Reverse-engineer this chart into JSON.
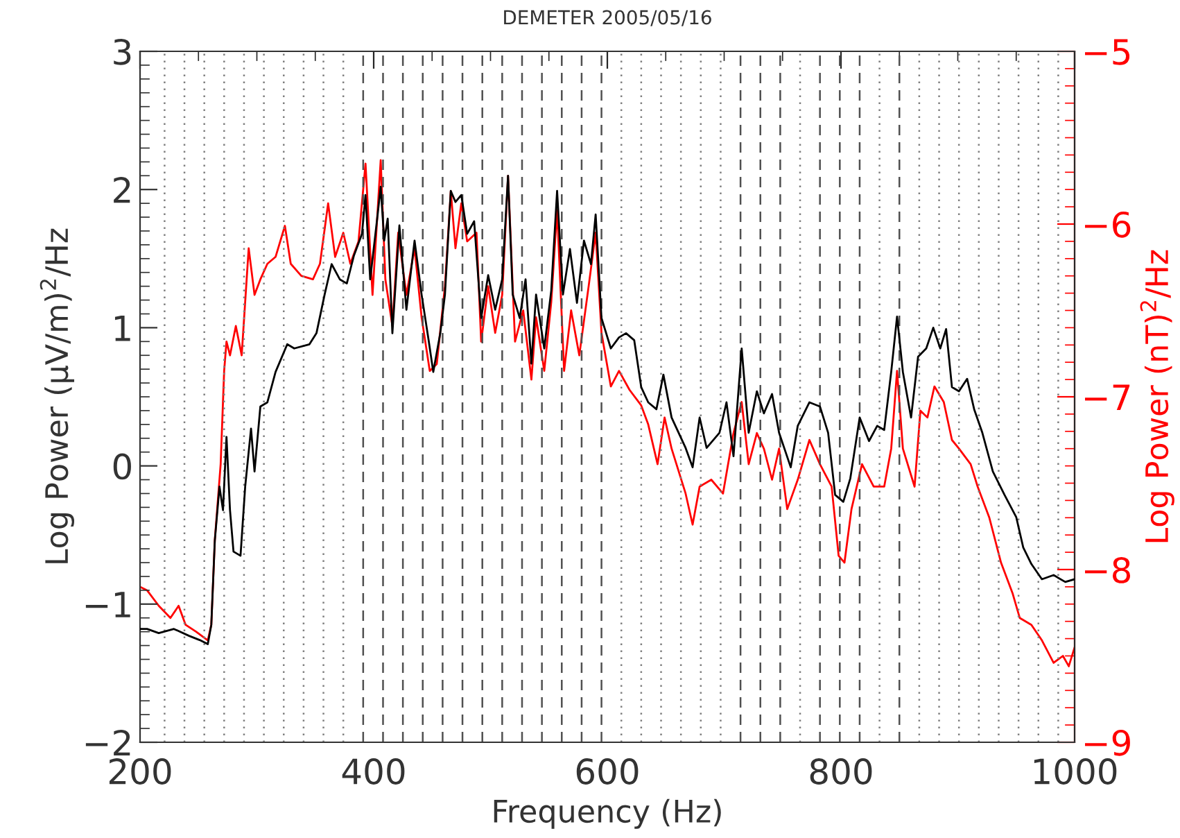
{
  "chart_data": {
    "type": "line",
    "title": "DEMETER 2005/05/16",
    "xlabel": "Frequency (Hz)",
    "ylabel": "Log Power (μV/m)$^{2}$/Hz",
    "y2label": "Log Power (nT)$^{2}$/Hz",
    "xlim": [
      200,
      1000
    ],
    "xticks": [
      200,
      400,
      600,
      800,
      1000
    ],
    "ylim": [
      -2,
      3
    ],
    "yticks": [
      -2,
      -1,
      0,
      1,
      2,
      3
    ],
    "y2lim": [
      -9,
      -5
    ],
    "y2ticks": [
      -9,
      -8,
      -7,
      -6,
      -5
    ],
    "grid": false,
    "legend": false,
    "marker": "none",
    "line_style": "solid",
    "series": [
      {
        "color": "#000000",
        "x": [
          200,
          206,
          216,
          229,
          242,
          251,
          258,
          261,
          264,
          268,
          271,
          274,
          277,
          280,
          286,
          290,
          295,
          298,
          303,
          309,
          316,
          326,
          332,
          345,
          351,
          358,
          364,
          371,
          377,
          383,
          390,
          393,
          397,
          403,
          406,
          409,
          412,
          416,
          422,
          428,
          435,
          441,
          447,
          451,
          457,
          461,
          466,
          470,
          475,
          480,
          486,
          492,
          498,
          504,
          510,
          515,
          519,
          525,
          530,
          535,
          539,
          546,
          552,
          557,
          562,
          568,
          574,
          580,
          586,
          590,
          595,
          603,
          610,
          616,
          623,
          629,
          635,
          642,
          648,
          655,
          667,
          673,
          679,
          685,
          696,
          702,
          708,
          715,
          721,
          728,
          734,
          741,
          747,
          757,
          763,
          773,
          782,
          789,
          795,
          802,
          808,
          816,
          824,
          831,
          837,
          843,
          848,
          853,
          860,
          866,
          873,
          879,
          885,
          890,
          895,
          901,
          908,
          914,
          921,
          930,
          940,
          950,
          956,
          963,
          972,
          982,
          992,
          1000
        ],
        "values": [
          -1.18,
          -1.18,
          -1.21,
          -1.18,
          -1.23,
          -1.26,
          -1.29,
          -1.15,
          -0.54,
          -0.15,
          -0.32,
          0.21,
          -0.32,
          -0.62,
          -0.65,
          -0.15,
          0.27,
          -0.04,
          0.43,
          0.46,
          0.68,
          0.88,
          0.85,
          0.88,
          0.96,
          1.24,
          1.46,
          1.35,
          1.32,
          1.52,
          1.68,
          1.96,
          1.35,
          1.79,
          2.02,
          1.63,
          1.79,
          0.96,
          1.74,
          1.13,
          1.63,
          1.24,
          0.91,
          0.68,
          0.96,
          1.24,
          1.99,
          1.91,
          1.96,
          1.68,
          1.77,
          1.07,
          1.38,
          1.13,
          1.35,
          2.1,
          1.24,
          1.07,
          1.35,
          0.74,
          1.24,
          0.85,
          1.27,
          1.99,
          1.24,
          1.57,
          1.18,
          1.63,
          1.46,
          1.82,
          1.07,
          0.85,
          0.93,
          0.96,
          0.91,
          0.57,
          0.46,
          0.41,
          0.66,
          0.35,
          0.13,
          -0.01,
          0.35,
          0.13,
          0.24,
          0.46,
          0.07,
          0.85,
          0.24,
          0.54,
          0.38,
          0.52,
          0.24,
          -0.01,
          0.29,
          0.46,
          0.43,
          0.24,
          -0.21,
          -0.26,
          -0.09,
          0.35,
          0.18,
          0.29,
          0.26,
          0.68,
          1.08,
          0.68,
          0.35,
          0.79,
          0.85,
          1.0,
          0.85,
          0.99,
          0.57,
          0.54,
          0.63,
          0.41,
          0.24,
          -0.04,
          -0.21,
          -0.37,
          -0.59,
          -0.71,
          -0.82,
          -0.79,
          -0.84,
          -0.82
        ]
      },
      {
        "color": "#ff0000",
        "axis": "y2",
        "x": [
          200,
          206,
          216,
          226,
          233,
          239,
          248,
          258,
          261,
          264,
          269,
          272,
          274,
          277,
          282,
          287,
          293,
          298,
          303,
          309,
          316,
          324,
          329,
          338,
          348,
          354,
          361,
          367,
          374,
          380,
          387,
          393,
          399,
          406,
          410,
          416,
          421,
          428,
          435,
          441,
          448,
          454,
          461,
          466,
          470,
          475,
          480,
          488,
          492,
          498,
          504,
          510,
          515,
          521,
          528,
          535,
          539,
          546,
          552,
          557,
          563,
          569,
          576,
          584,
          590,
          595,
          603,
          610,
          619,
          629,
          635,
          643,
          649,
          655,
          667,
          673,
          679,
          689,
          699,
          708,
          715,
          721,
          728,
          734,
          741,
          747,
          754,
          763,
          773,
          782,
          792,
          798,
          803,
          809,
          818,
          828,
          837,
          843,
          848,
          853,
          863,
          868,
          874,
          880,
          888,
          895,
          901,
          911,
          917,
          927,
          937,
          947,
          953,
          963,
          972,
          982,
          990,
          995,
          1000
        ],
        "values": [
          -8.1,
          -8.12,
          -8.21,
          -8.28,
          -8.21,
          -8.32,
          -8.36,
          -8.41,
          -8.32,
          -7.83,
          -7.39,
          -6.85,
          -6.68,
          -6.76,
          -6.59,
          -6.76,
          -6.14,
          -6.41,
          -6.32,
          -6.23,
          -6.19,
          -6.01,
          -6.23,
          -6.3,
          -6.32,
          -6.23,
          -5.88,
          -6.19,
          -6.05,
          -6.23,
          -6.1,
          -5.65,
          -6.41,
          -5.63,
          -6.32,
          -6.59,
          -6.05,
          -6.41,
          -6.14,
          -6.54,
          -6.85,
          -6.81,
          -6.36,
          -5.81,
          -6.14,
          -5.88,
          -6.1,
          -6.05,
          -6.68,
          -6.36,
          -6.63,
          -6.41,
          -5.72,
          -6.68,
          -6.5,
          -6.9,
          -6.54,
          -6.85,
          -6.45,
          -5.92,
          -6.85,
          -6.5,
          -6.76,
          -6.36,
          -6.05,
          -6.63,
          -6.94,
          -6.85,
          -6.96,
          -7.05,
          -7.16,
          -7.39,
          -7.12,
          -7.3,
          -7.56,
          -7.74,
          -7.52,
          -7.48,
          -7.56,
          -7.21,
          -7.03,
          -7.39,
          -7.21,
          -7.3,
          -7.48,
          -7.3,
          -7.65,
          -7.48,
          -7.25,
          -7.39,
          -7.52,
          -7.92,
          -7.96,
          -7.65,
          -7.39,
          -7.52,
          -7.52,
          -7.3,
          -6.85,
          -7.3,
          -7.52,
          -7.08,
          -7.12,
          -6.94,
          -7.03,
          -7.25,
          -7.3,
          -7.39,
          -7.52,
          -7.7,
          -7.96,
          -8.14,
          -8.28,
          -8.32,
          -8.41,
          -8.54,
          -8.5,
          -8.56,
          -8.45
        ]
      }
    ],
    "ref_lines": [
      {
        "axis": "x",
        "value": 221,
        "line_style": "dotted",
        "color": "#808080"
      },
      {
        "axis": "x",
        "value": 238,
        "line_style": "dotted",
        "color": "#808080"
      },
      {
        "axis": "x",
        "value": 255,
        "line_style": "dotted",
        "color": "#808080"
      },
      {
        "axis": "x",
        "value": 272,
        "line_style": "dotted",
        "color": "#808080"
      },
      {
        "axis": "x",
        "value": 289,
        "line_style": "dotted",
        "color": "#808080"
      },
      {
        "axis": "x",
        "value": 306,
        "line_style": "dotted",
        "color": "#808080"
      },
      {
        "axis": "x",
        "value": 323,
        "line_style": "dotted",
        "color": "#808080"
      },
      {
        "axis": "x",
        "value": 340,
        "line_style": "dotted",
        "color": "#808080"
      },
      {
        "axis": "x",
        "value": 357,
        "line_style": "dotted",
        "color": "#808080"
      },
      {
        "axis": "x",
        "value": 374,
        "line_style": "dotted",
        "color": "#808080"
      },
      {
        "axis": "x",
        "value": 391,
        "line_style": "dashed",
        "color": "#505050"
      },
      {
        "axis": "x",
        "value": 408,
        "line_style": "dashed",
        "color": "#505050"
      },
      {
        "axis": "x",
        "value": 425,
        "line_style": "dashed",
        "color": "#505050"
      },
      {
        "axis": "x",
        "value": 442,
        "line_style": "dashed",
        "color": "#505050"
      },
      {
        "axis": "x",
        "value": 459,
        "line_style": "dashed",
        "color": "#505050"
      },
      {
        "axis": "x",
        "value": 476,
        "line_style": "dashed",
        "color": "#505050"
      },
      {
        "axis": "x",
        "value": 493,
        "line_style": "dashed",
        "color": "#505050"
      },
      {
        "axis": "x",
        "value": 510,
        "line_style": "dashed",
        "color": "#505050"
      },
      {
        "axis": "x",
        "value": 527,
        "line_style": "dashed",
        "color": "#505050"
      },
      {
        "axis": "x",
        "value": 544,
        "line_style": "dashed",
        "color": "#505050"
      },
      {
        "axis": "x",
        "value": 561,
        "line_style": "dashed",
        "color": "#505050"
      },
      {
        "axis": "x",
        "value": 578,
        "line_style": "dashed",
        "color": "#505050"
      },
      {
        "axis": "x",
        "value": 595,
        "line_style": "dashed",
        "color": "#505050"
      },
      {
        "axis": "x",
        "value": 612,
        "line_style": "dotted",
        "color": "#808080"
      },
      {
        "axis": "x",
        "value": 629,
        "line_style": "dotted",
        "color": "#808080"
      },
      {
        "axis": "x",
        "value": 646,
        "line_style": "dotted",
        "color": "#808080"
      },
      {
        "axis": "x",
        "value": 663,
        "line_style": "dotted",
        "color": "#808080"
      },
      {
        "axis": "x",
        "value": 680,
        "line_style": "dotted",
        "color": "#808080"
      },
      {
        "axis": "x",
        "value": 697,
        "line_style": "dotted",
        "color": "#808080"
      },
      {
        "axis": "x",
        "value": 714,
        "line_style": "dashed",
        "color": "#505050"
      },
      {
        "axis": "x",
        "value": 731,
        "line_style": "dashed",
        "color": "#505050"
      },
      {
        "axis": "x",
        "value": 748,
        "line_style": "dashed",
        "color": "#505050"
      },
      {
        "axis": "x",
        "value": 765,
        "line_style": "dotted",
        "color": "#808080"
      },
      {
        "axis": "x",
        "value": 782,
        "line_style": "dashed",
        "color": "#505050"
      },
      {
        "axis": "x",
        "value": 799,
        "line_style": "dashed",
        "color": "#505050"
      },
      {
        "axis": "x",
        "value": 816,
        "line_style": "dashed",
        "color": "#505050"
      },
      {
        "axis": "x",
        "value": 833,
        "line_style": "dotted",
        "color": "#808080"
      },
      {
        "axis": "x",
        "value": 850,
        "line_style": "dashed",
        "color": "#505050"
      },
      {
        "axis": "x",
        "value": 867,
        "line_style": "dotted",
        "color": "#808080"
      },
      {
        "axis": "x",
        "value": 884,
        "line_style": "dotted",
        "color": "#808080"
      },
      {
        "axis": "x",
        "value": 901,
        "line_style": "dotted",
        "color": "#808080"
      },
      {
        "axis": "x",
        "value": 918,
        "line_style": "dotted",
        "color": "#808080"
      },
      {
        "axis": "x",
        "value": 935,
        "line_style": "dotted",
        "color": "#808080"
      },
      {
        "axis": "x",
        "value": 952,
        "line_style": "dotted",
        "color": "#808080"
      },
      {
        "axis": "x",
        "value": 969,
        "line_style": "dotted",
        "color": "#808080"
      },
      {
        "axis": "x",
        "value": 986,
        "line_style": "dotted",
        "color": "#808080"
      }
    ]
  }
}
